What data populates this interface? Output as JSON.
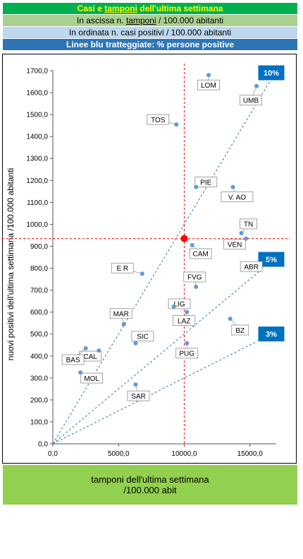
{
  "header": {
    "title_a": "Casi e ",
    "title_b": "tamponi",
    "title_c": " dell'ultima settimana",
    "line2_a": "In ascissa n. ",
    "line2_b": "tamponi",
    "line2_c": " / 100.000 abitanti",
    "line3": "In ordinata n. casi positivi / 100.000 abitanti",
    "line4": "Linee blu tratteggiate: % persone positive"
  },
  "xlabel_line1": "tamponi dell'ultima settimana",
  "xlabel_line2": "/100.000 abit",
  "chart_data": {
    "type": "scatter",
    "ylabel": "nuovi positivi dell'ultima settimana /100.000 abitanti",
    "xlim": [
      0,
      17000
    ],
    "ylim": [
      0,
      1700
    ],
    "x_ticks": [
      "0,0",
      "5000,0",
      "10000,0",
      "15000,0"
    ],
    "x_tick_values": [
      0,
      5000,
      10000,
      15000
    ],
    "y_ticks": [
      "0,0",
      "100,0",
      "200,0",
      "300,0",
      "400,0",
      "500,0",
      "600,0",
      "700,0",
      "800,0",
      "900,0",
      "1000,0",
      "1100,0",
      "1200,0",
      "1300,0",
      "1400,0",
      "1500,0",
      "1600,0",
      "1700,0"
    ],
    "y_tick_values": [
      0,
      100,
      200,
      300,
      400,
      500,
      600,
      700,
      800,
      900,
      1000,
      1100,
      1200,
      1300,
      1400,
      1500,
      1600,
      1700
    ],
    "grid": false,
    "points": [
      {
        "label": "LOM",
        "x": 11850,
        "y": 1680
      },
      {
        "label": "UMB",
        "x": 15500,
        "y": 1630
      },
      {
        "label": "TOS",
        "x": 9400,
        "y": 1455
      },
      {
        "label": "PIE",
        "x": 10900,
        "y": 1170
      },
      {
        "label": "V. AO",
        "x": 13700,
        "y": 1170
      },
      {
        "label": "TN",
        "x": 14350,
        "y": 960
      },
      {
        "label": "VEN",
        "x": 14700,
        "y": 935
      },
      {
        "label": "CAM",
        "x": 10600,
        "y": 905
      },
      {
        "label": "ABR",
        "x": 16500,
        "y": 840
      },
      {
        "label": "E R",
        "x": 6800,
        "y": 775
      },
      {
        "label": "FVG",
        "x": 10900,
        "y": 715
      },
      {
        "label": "LIG",
        "x": 9200,
        "y": 625
      },
      {
        "label": "LAZ",
        "x": 10200,
        "y": 600
      },
      {
        "label": "MAR",
        "x": 5400,
        "y": 545
      },
      {
        "label": "BZ",
        "x": 13500,
        "y": 570
      },
      {
        "label": "CAL",
        "x": 3500,
        "y": 425
      },
      {
        "label": "SIC",
        "x": 6300,
        "y": 458
      },
      {
        "label": "PUG",
        "x": 10200,
        "y": 458
      },
      {
        "label": "BAS",
        "x": 2500,
        "y": 435
      },
      {
        "label": "MOL",
        "x": 2100,
        "y": 325
      },
      {
        "label": "SAR",
        "x": 6300,
        "y": 270
      }
    ],
    "reference_point": {
      "x": 10000,
      "y": 935,
      "color": "#ff0000"
    },
    "reference_lines": {
      "x": 10000,
      "y": 935,
      "color": "#ff0000"
    },
    "ratio_lines": [
      {
        "label": "10%",
        "ratio": 0.1
      },
      {
        "label": "5%",
        "ratio": 0.05
      },
      {
        "label": "3%",
        "ratio": 0.03
      }
    ],
    "colors": {
      "point": "#5b9bd5",
      "ratio_line": "#2e75b6",
      "ratio_badge": "#0070c0"
    }
  }
}
